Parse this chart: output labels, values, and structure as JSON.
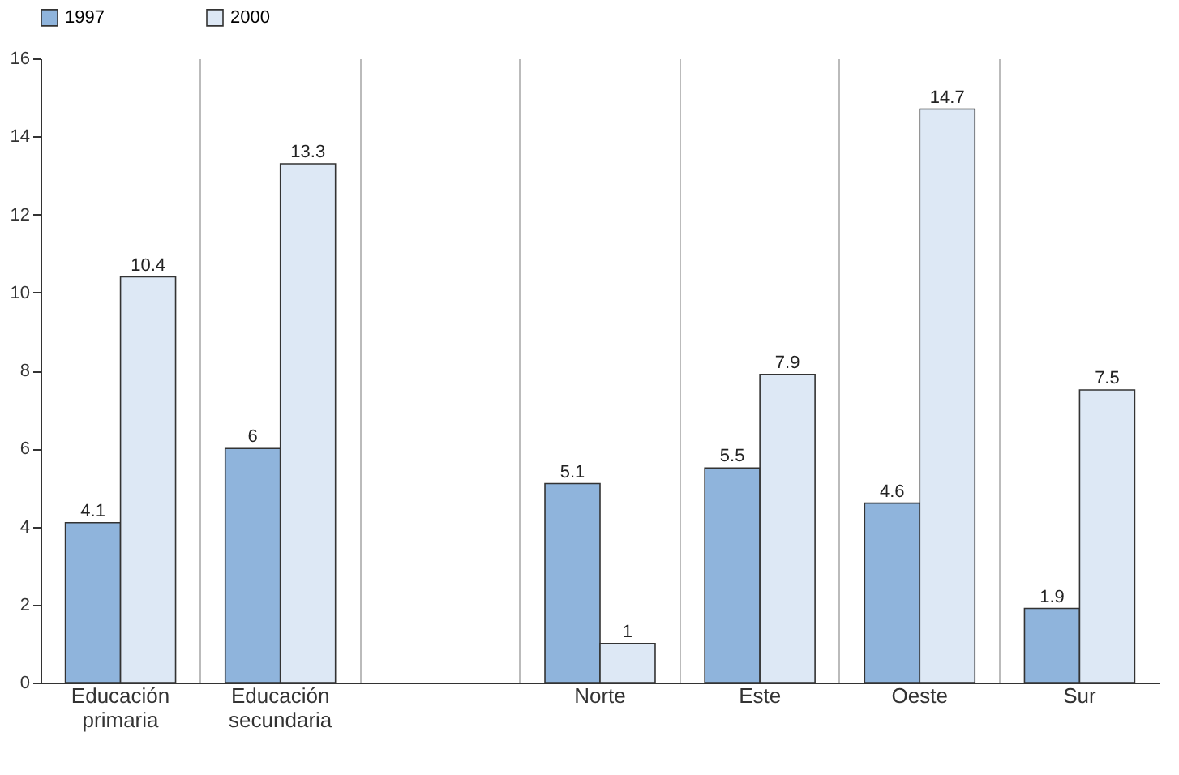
{
  "chart_data": {
    "type": "bar",
    "categories": [
      "Educación primaria",
      "Educación secundaria",
      null,
      "Norte",
      "Este",
      "Oeste",
      "Sur"
    ],
    "series": [
      {
        "name": "1997",
        "color": "#8fb4dc",
        "values": [
          4.1,
          6,
          null,
          5.1,
          5.5,
          4.6,
          1.9
        ]
      },
      {
        "name": "2000",
        "color": "#dde8f5",
        "values": [
          10.4,
          13.3,
          null,
          1,
          7.9,
          14.7,
          7.5
        ]
      }
    ],
    "ylim": [
      0,
      16
    ],
    "yticks": [
      0,
      2,
      4,
      6,
      8,
      10,
      12,
      14,
      16
    ],
    "data_labels": true,
    "legend": "top",
    "grid": "x"
  }
}
